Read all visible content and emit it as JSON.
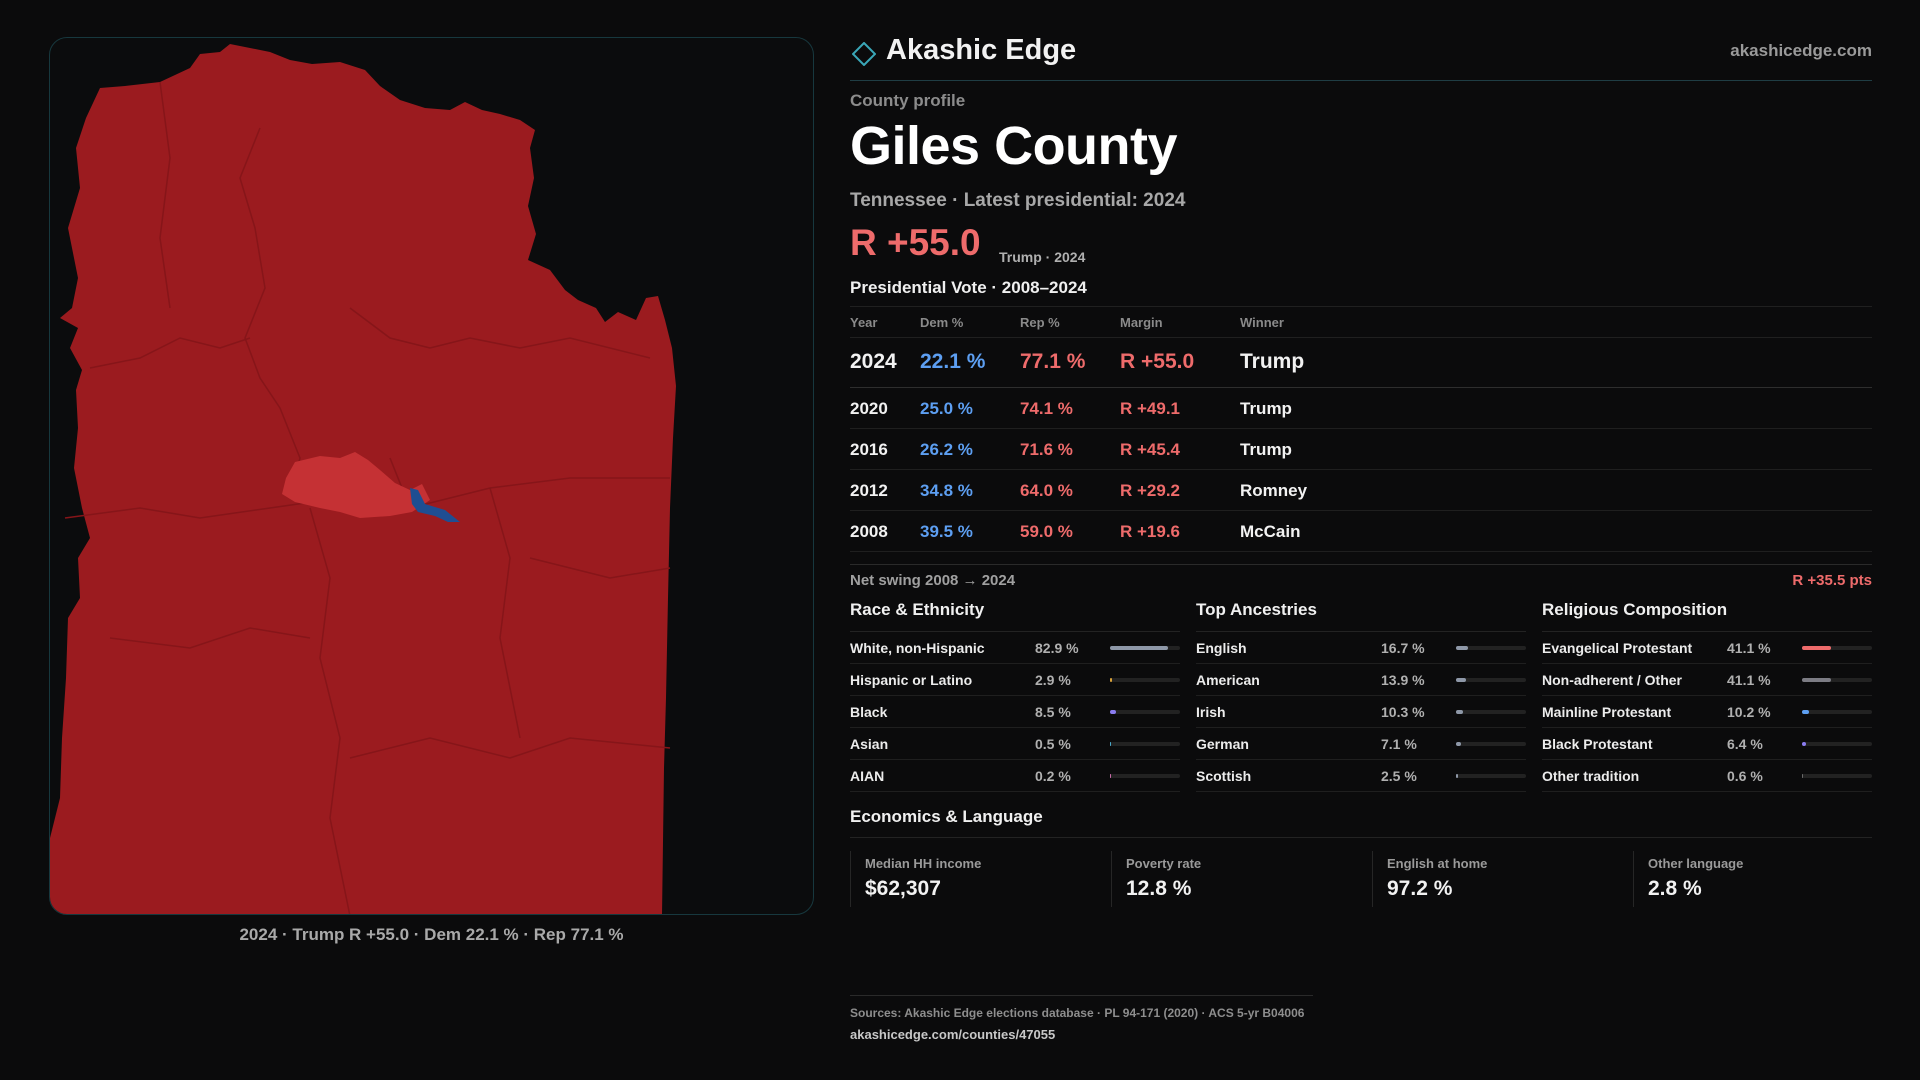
{
  "header": {
    "brand": "Akashic Edge",
    "site": "akashicedge.com"
  },
  "profile": {
    "kicker": "County profile",
    "name": "Giles County",
    "subtitle": "Tennessee · Latest presidential: 2024",
    "margin": "R +55.0",
    "margin_note": "Trump · 2024"
  },
  "map": {
    "caption": "2024 · Trump R +55.0 · Dem 22.1 % · Rep 77.1 %",
    "colors": {
      "rep_dark": "#9b1b1f",
      "rep_light": "#c53134",
      "dem": "#1f4e92"
    }
  },
  "vote": {
    "title": "Presidential Vote · 2008–2024",
    "headers": {
      "year": "Year",
      "dem": "Dem %",
      "rep": "Rep %",
      "margin": "Margin",
      "winner": "Winner"
    },
    "rows": [
      {
        "year": "2024",
        "dem": "22.1 %",
        "rep": "77.1 %",
        "margin": "R +55.0",
        "winner": "Trump"
      },
      {
        "year": "2020",
        "dem": "25.0 %",
        "rep": "74.1 %",
        "margin": "R +49.1",
        "winner": "Trump"
      },
      {
        "year": "2016",
        "dem": "26.2 %",
        "rep": "71.6 %",
        "margin": "R +45.4",
        "winner": "Trump"
      },
      {
        "year": "2012",
        "dem": "34.8 %",
        "rep": "64.0 %",
        "margin": "R +29.2",
        "winner": "Romney"
      },
      {
        "year": "2008",
        "dem": "39.5 %",
        "rep": "59.0 %",
        "margin": "R +19.6",
        "winner": "McCain"
      }
    ],
    "swing_label": "Net swing 2008 → 2024",
    "swing_value": "R +35.5 pts"
  },
  "race": {
    "title": "Race & Ethnicity",
    "items": [
      {
        "label": "White, non-Hispanic",
        "pct": "82.9 %",
        "value": 82.9,
        "color": "#8e98a8"
      },
      {
        "label": "Hispanic or Latino",
        "pct": "2.9 %",
        "value": 2.9,
        "color": "#d9a23a"
      },
      {
        "label": "Black",
        "pct": "8.5 %",
        "value": 8.5,
        "color": "#8a7cf0"
      },
      {
        "label": "Asian",
        "pct": "0.5 %",
        "value": 0.5,
        "color": "#4aa8c8"
      },
      {
        "label": "AIAN",
        "pct": "0.2 %",
        "value": 0.2,
        "color": "#c86aa8"
      }
    ]
  },
  "ancestry": {
    "title": "Top Ancestries",
    "items": [
      {
        "label": "English",
        "pct": "16.7 %",
        "value": 16.7,
        "color": "#8e98a8"
      },
      {
        "label": "American",
        "pct": "13.9 %",
        "value": 13.9,
        "color": "#8e98a8"
      },
      {
        "label": "Irish",
        "pct": "10.3 %",
        "value": 10.3,
        "color": "#8e98a8"
      },
      {
        "label": "German",
        "pct": "7.1 %",
        "value": 7.1,
        "color": "#8e98a8"
      },
      {
        "label": "Scottish",
        "pct": "2.5 %",
        "value": 2.5,
        "color": "#8e98a8"
      }
    ]
  },
  "religion": {
    "title": "Religious Composition",
    "items": [
      {
        "label": "Evangelical Protestant",
        "pct": "41.1 %",
        "value": 41.1,
        "color": "#ee6b6b"
      },
      {
        "label": "Non-adherent / Other",
        "pct": "41.1 %",
        "value": 41.1,
        "color": "#7c7c84"
      },
      {
        "label": "Mainline Protestant",
        "pct": "10.2 %",
        "value": 10.2,
        "color": "#5d9ff2"
      },
      {
        "label": "Black Protestant",
        "pct": "6.4 %",
        "value": 6.4,
        "color": "#8a7cf0"
      },
      {
        "label": "Other tradition",
        "pct": "0.6 %",
        "value": 0.6,
        "color": "#6a6a6a"
      }
    ]
  },
  "economics": {
    "title": "Economics & Language",
    "cards": [
      {
        "label": "Median HH income",
        "value": "$62,307"
      },
      {
        "label": "Poverty rate",
        "value": "12.8 %"
      },
      {
        "label": "English at home",
        "value": "97.2 %"
      },
      {
        "label": "Other language",
        "value": "2.8 %"
      }
    ]
  },
  "footer": {
    "sources": "Sources: Akashic Edge elections database · PL 94-171 (2020) · ACS 5-yr B04006",
    "url": "akashicedge.com/counties/47055"
  }
}
